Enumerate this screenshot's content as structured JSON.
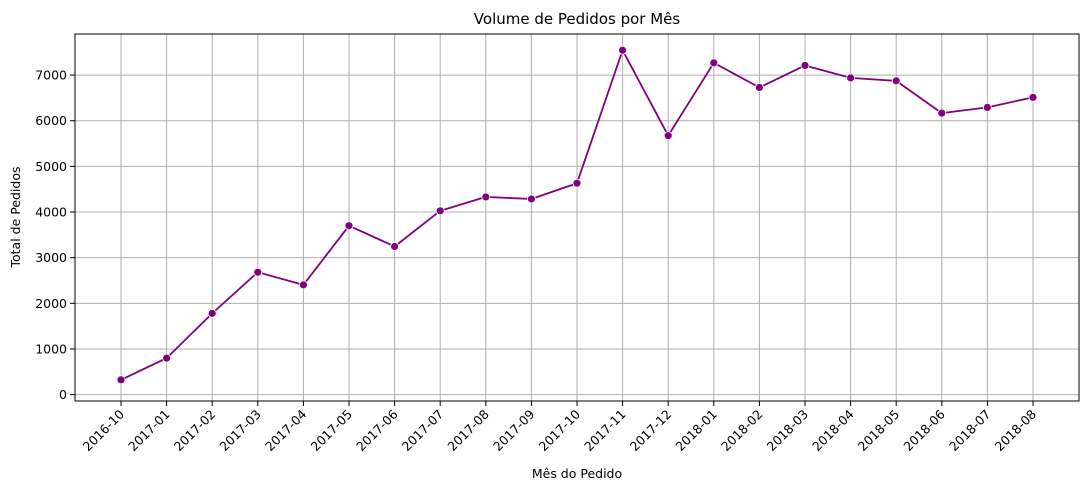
{
  "chart_data": {
    "type": "line",
    "title": "Volume de Pedidos por Mês",
    "xlabel": "Mês do Pedido",
    "ylabel": "Total de Pedidos",
    "categories": [
      "2016-10",
      "2017-01",
      "2017-02",
      "2017-03",
      "2017-04",
      "2017-05",
      "2017-06",
      "2017-07",
      "2017-08",
      "2017-09",
      "2017-10",
      "2017-11",
      "2017-12",
      "2018-01",
      "2018-02",
      "2018-03",
      "2018-04",
      "2018-05",
      "2018-06",
      "2018-07",
      "2018-08"
    ],
    "series": [
      {
        "values": [
          324,
          800,
          1780,
          2682,
          2404,
          3700,
          3245,
          4026,
          4331,
          4285,
          4631,
          7544,
          5673,
          7269,
          6728,
          7211,
          6939,
          6873,
          6167,
          6292,
          6512
        ],
        "color": "#800080",
        "marker": "circle"
      }
    ],
    "ylim": [
      -140,
      7900
    ],
    "yticks": [
      0,
      1000,
      2000,
      3000,
      4000,
      5000,
      6000,
      7000
    ],
    "grid": true,
    "legend": "none"
  }
}
